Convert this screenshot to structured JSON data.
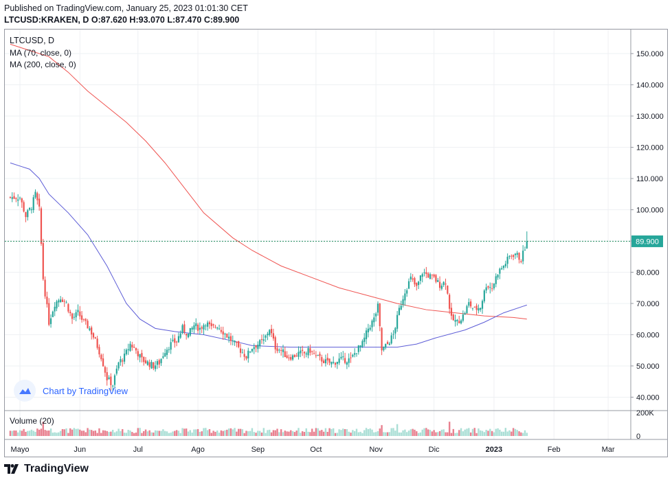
{
  "header": {
    "published": "Published on TradingView.com, January 25, 2023 01:01:30 CET",
    "ohlc": "LTCUSD:KRAKEN, D O:87.620 H:93.070 L:87.470 C:89.900"
  },
  "legend": {
    "symbol": "LTCUSD, D",
    "ma70": "MA (70, close, 0)",
    "ma200": "MA (200, close, 0)",
    "volume": "Volume (20)"
  },
  "watermark": {
    "text": "Chart by TradingView"
  },
  "brand": {
    "name": "TradingView"
  },
  "colors": {
    "up": "#26a69a",
    "down": "#ef5350",
    "up_fill": "#8fd4c8",
    "down_fill": "#e0556a",
    "ma70": "#5b5bd6",
    "ma200": "#ef5350",
    "price_line": "#2e8b57",
    "grid": "#eef0f3",
    "axis_text": "#131722"
  },
  "chart_data": {
    "type": "candlestick",
    "title": "LTCUSD, D",
    "x_tick_labels": [
      "Mayo",
      "Jun",
      "Jul",
      "Ago",
      "Sep",
      "Oct",
      "Nov",
      "Dic",
      "2023",
      "Feb",
      "Mar"
    ],
    "x_tick_days": [
      0,
      31,
      61,
      92,
      123,
      153,
      184,
      214,
      245,
      276,
      304
    ],
    "y_tick_labels": [
      "40.000",
      "50.000",
      "60.000",
      "70.000",
      "80.000",
      "90.000",
      "100.000",
      "110.000",
      "120.000",
      "130.000",
      "140.000",
      "150.000"
    ],
    "y_ticks": [
      40,
      50,
      60,
      70,
      80,
      90,
      100,
      110,
      120,
      130,
      140,
      150
    ],
    "ylim": [
      35.7,
      157.7
    ],
    "last_price": 89.9,
    "last_price_label": "89.900",
    "volume_tick_labels": [
      "200K",
      "0"
    ],
    "volume_ticks": [
      200000,
      0
    ],
    "volume_max": 200000,
    "anchors": [
      [
        -5,
        104
      ],
      [
        0,
        104
      ],
      [
        3,
        98
      ],
      [
        6,
        101
      ],
      [
        8,
        105
      ],
      [
        10,
        100
      ],
      [
        12,
        78
      ],
      [
        15,
        64
      ],
      [
        18,
        70
      ],
      [
        21,
        72
      ],
      [
        24,
        70
      ],
      [
        27,
        65
      ],
      [
        30,
        67
      ],
      [
        33,
        64
      ],
      [
        36,
        62
      ],
      [
        39,
        58
      ],
      [
        42,
        53
      ],
      [
        45,
        46
      ],
      [
        48,
        44
      ],
      [
        51,
        51
      ],
      [
        54,
        53
      ],
      [
        57,
        57
      ],
      [
        60,
        55
      ],
      [
        63,
        52
      ],
      [
        66,
        51
      ],
      [
        69,
        50
      ],
      [
        72,
        51
      ],
      [
        75,
        55
      ],
      [
        78,
        57
      ],
      [
        81,
        58
      ],
      [
        84,
        62
      ],
      [
        87,
        60
      ],
      [
        90,
        63
      ],
      [
        93,
        62
      ],
      [
        96,
        64
      ],
      [
        99,
        62
      ],
      [
        102,
        63
      ],
      [
        105,
        61
      ],
      [
        108,
        59
      ],
      [
        111,
        57
      ],
      [
        114,
        55
      ],
      [
        117,
        53
      ],
      [
        120,
        56
      ],
      [
        123,
        57
      ],
      [
        126,
        58
      ],
      [
        129,
        62
      ],
      [
        132,
        56
      ],
      [
        135,
        55
      ],
      [
        138,
        53
      ],
      [
        141,
        53
      ],
      [
        144,
        54
      ],
      [
        147,
        54
      ],
      [
        150,
        55
      ],
      [
        153,
        53
      ],
      [
        156,
        52
      ],
      [
        159,
        51
      ],
      [
        162,
        51
      ],
      [
        165,
        52
      ],
      [
        168,
        52
      ],
      [
        171,
        52
      ],
      [
        174,
        55
      ],
      [
        177,
        57
      ],
      [
        180,
        62
      ],
      [
        183,
        65
      ],
      [
        185,
        69
      ],
      [
        187,
        55
      ],
      [
        190,
        57
      ],
      [
        193,
        60
      ],
      [
        196,
        68
      ],
      [
        199,
        74
      ],
      [
        202,
        78
      ],
      [
        205,
        75
      ],
      [
        208,
        80
      ],
      [
        211,
        79
      ],
      [
        214,
        78
      ],
      [
        217,
        76
      ],
      [
        220,
        77
      ],
      [
        223,
        65
      ],
      [
        226,
        64
      ],
      [
        229,
        66
      ],
      [
        232,
        70
      ],
      [
        235,
        68
      ],
      [
        238,
        69
      ],
      [
        241,
        76
      ],
      [
        244,
        75
      ],
      [
        247,
        80
      ],
      [
        250,
        82
      ],
      [
        253,
        85
      ],
      [
        256,
        86
      ],
      [
        259,
        84
      ],
      [
        262,
        89.9
      ]
    ],
    "ma70_points": [
      [
        -5,
        115
      ],
      [
        0,
        114
      ],
      [
        5,
        113
      ],
      [
        10,
        110
      ],
      [
        15,
        105
      ],
      [
        25,
        99
      ],
      [
        35,
        92
      ],
      [
        45,
        82
      ],
      [
        50,
        76
      ],
      [
        55,
        70
      ],
      [
        62,
        65
      ],
      [
        70,
        62
      ],
      [
        80,
        61
      ],
      [
        95,
        60
      ],
      [
        110,
        58
      ],
      [
        120,
        56.5
      ],
      [
        140,
        56
      ],
      [
        160,
        56
      ],
      [
        183,
        56
      ],
      [
        195,
        56
      ],
      [
        205,
        57
      ],
      [
        215,
        59
      ],
      [
        230,
        61.5
      ],
      [
        240,
        64
      ],
      [
        250,
        67
      ],
      [
        262,
        69.5
      ]
    ],
    "ma200_points": [
      [
        -5,
        153
      ],
      [
        5,
        151
      ],
      [
        15,
        149
      ],
      [
        25,
        144
      ],
      [
        35,
        138
      ],
      [
        45,
        133
      ],
      [
        55,
        128
      ],
      [
        65,
        122
      ],
      [
        75,
        115
      ],
      [
        85,
        107
      ],
      [
        95,
        99
      ],
      [
        110,
        91
      ],
      [
        120,
        87
      ],
      [
        135,
        82
      ],
      [
        150,
        78.5
      ],
      [
        165,
        75
      ],
      [
        180,
        72.5
      ],
      [
        195,
        70
      ],
      [
        210,
        68
      ],
      [
        225,
        67
      ],
      [
        240,
        66
      ],
      [
        255,
        65.5
      ],
      [
        262,
        65
      ]
    ]
  }
}
